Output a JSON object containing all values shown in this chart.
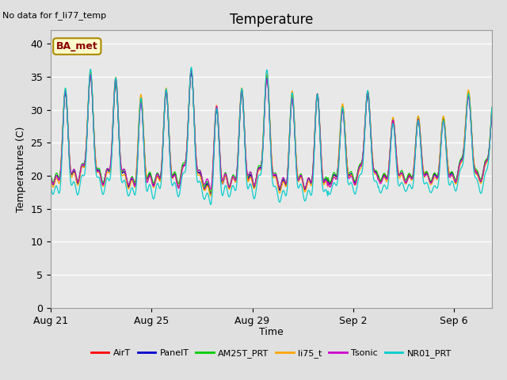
{
  "title": "Temperature",
  "ylabel": "Temperatures (C)",
  "xlabel": "Time",
  "no_data_text": "No data for f_li77_temp",
  "ba_met_label": "BA_met",
  "ylim": [
    0,
    42
  ],
  "yticks": [
    0,
    5,
    10,
    15,
    20,
    25,
    30,
    35,
    40
  ],
  "xtick_labels": [
    "Aug 21",
    "Aug 25",
    "Aug 29",
    "Sep 2",
    "Sep 6"
  ],
  "xtick_days": [
    0,
    4,
    8,
    12,
    16
  ],
  "legend_entries": [
    "AirT",
    "PanelT",
    "AM25T_PRT",
    "li75_t",
    "Tsonic",
    "NR01_PRT"
  ],
  "legend_colors": [
    "#ff0000",
    "#0000cd",
    "#00cc00",
    "#ffa500",
    "#cc00cc",
    "#00cccc"
  ],
  "background_color": "#e0e0e0",
  "plot_area_color": "#e8e8e8",
  "grid_color": "#ffffff",
  "title_fontsize": 12,
  "label_fontsize": 9,
  "tick_fontsize": 9,
  "total_days": 17.5,
  "n_points": 1200
}
